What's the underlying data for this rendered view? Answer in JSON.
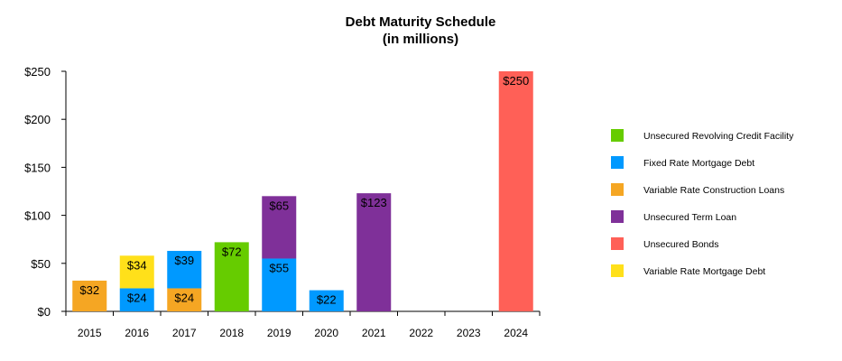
{
  "chart_data": {
    "type": "bar",
    "stacked": true,
    "title": "Debt Maturity Schedule",
    "subtitle": "(in millions)",
    "categories": [
      "2015",
      "2016",
      "2017",
      "2018",
      "2019",
      "2020",
      "2021",
      "2022",
      "2023",
      "2024"
    ],
    "ylim": [
      0,
      250
    ],
    "yticks": [
      "$0",
      "$50",
      "$100",
      "$150",
      "$200",
      "$250"
    ],
    "ytick_values": [
      0,
      50,
      100,
      150,
      200,
      250
    ],
    "grid": false,
    "legend_position": "right",
    "series": [
      {
        "name": "Unsecured Revolving Credit Facility",
        "color": "#66CC00",
        "values": [
          0,
          0,
          0,
          72,
          0,
          0,
          0,
          0,
          0,
          0
        ],
        "labels": [
          "",
          "",
          "",
          "$72",
          "",
          "",
          "",
          "",
          "",
          ""
        ]
      },
      {
        "name": "Fixed Rate Mortgage Debt",
        "color": "#0099FF",
        "values": [
          0,
          24,
          39,
          0,
          55,
          22,
          0,
          0,
          0,
          0
        ],
        "labels": [
          "",
          "$24",
          "$39",
          "",
          "$55",
          "$22",
          "",
          "",
          "",
          ""
        ]
      },
      {
        "name": "Variable Rate Construction Loans",
        "color": "#F5A623",
        "values": [
          32,
          0,
          24,
          0,
          0,
          0,
          0,
          0,
          0,
          0
        ],
        "labels": [
          "$32",
          "",
          "$24",
          "",
          "",
          "",
          "",
          "",
          "",
          ""
        ]
      },
      {
        "name": "Unsecured Term Loan",
        "color": "#7F3099",
        "values": [
          0,
          0,
          0,
          0,
          65,
          0,
          123,
          0,
          0,
          0
        ],
        "labels": [
          "",
          "",
          "",
          "",
          "$65",
          "",
          "$123",
          "",
          "",
          ""
        ]
      },
      {
        "name": "Unsecured Bonds",
        "color": "#FF6057",
        "values": [
          0,
          0,
          0,
          0,
          0,
          0,
          0,
          0,
          0,
          250
        ],
        "labels": [
          "",
          "",
          "",
          "",
          "",
          "",
          "",
          "",
          "",
          "$250"
        ]
      },
      {
        "name": "Variable Rate Mortgage Debt",
        "color": "#FFE01A",
        "values": [
          0,
          34,
          0,
          0,
          0,
          0,
          0,
          0,
          0,
          0
        ],
        "labels": [
          "",
          "$34",
          "",
          "",
          "",
          "",
          "",
          "",
          "",
          ""
        ]
      }
    ],
    "stack_order": [
      "Variable Rate Construction Loans",
      "Fixed Rate Mortgage Debt",
      "Unsecured Revolving Credit Facility",
      "Unsecured Term Loan",
      "Unsecured Bonds",
      "Variable Rate Mortgage Debt"
    ]
  }
}
